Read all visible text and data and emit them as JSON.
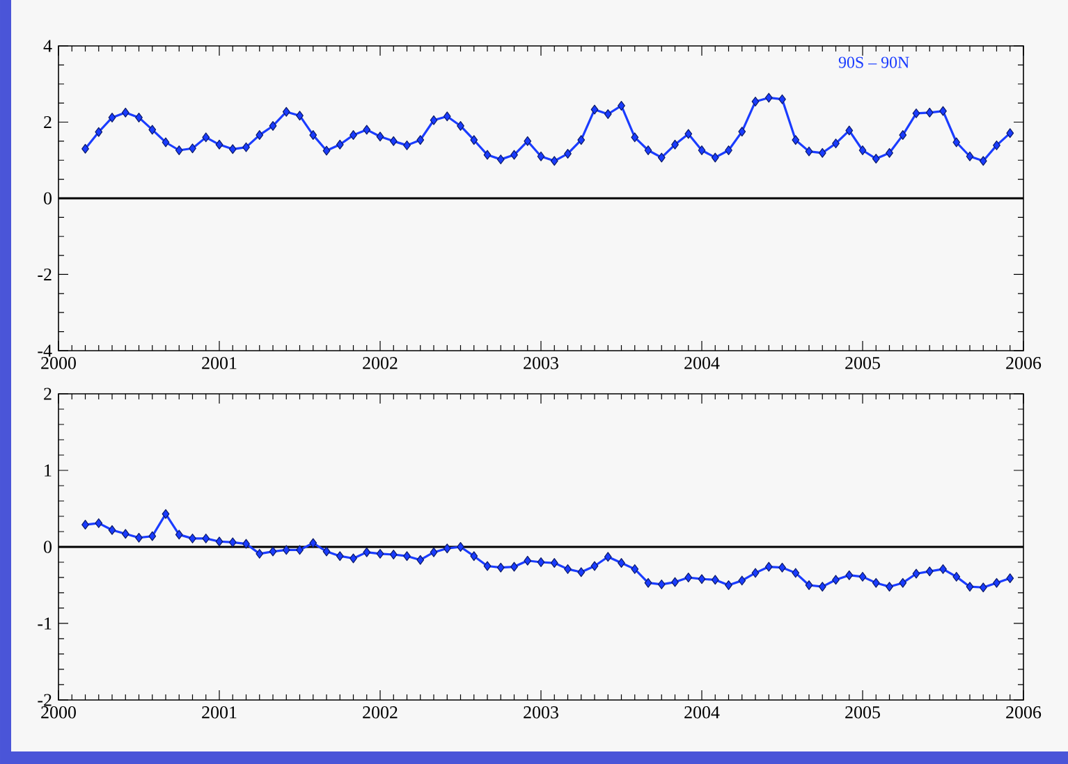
{
  "chart_data": [
    {
      "type": "line",
      "marker": "diamond",
      "color": "#1a3cff",
      "x": [
        "2000-03",
        "2000-04",
        "2000-05",
        "2000-06",
        "2000-07",
        "2000-08",
        "2000-09",
        "2000-10",
        "2000-11",
        "2000-12",
        "2001-01",
        "2001-02",
        "2001-03",
        "2001-04",
        "2001-05",
        "2001-06",
        "2001-07",
        "2001-08",
        "2001-09",
        "2001-10",
        "2001-11",
        "2001-12",
        "2002-01",
        "2002-02",
        "2002-03",
        "2002-04",
        "2002-05",
        "2002-06",
        "2002-07",
        "2002-08",
        "2002-09",
        "2002-10",
        "2002-11",
        "2002-12",
        "2003-01",
        "2003-02",
        "2003-03",
        "2003-04",
        "2003-05",
        "2003-06",
        "2003-07",
        "2003-08",
        "2003-09",
        "2003-10",
        "2003-11",
        "2003-12",
        "2004-01",
        "2004-02",
        "2004-03",
        "2004-04",
        "2004-05",
        "2004-06",
        "2004-07",
        "2004-08",
        "2004-09",
        "2004-10",
        "2004-11",
        "2004-12",
        "2005-01",
        "2005-02",
        "2005-03",
        "2005-04",
        "2005-05",
        "2005-06",
        "2005-07",
        "2005-08",
        "2005-09",
        "2005-10",
        "2005-11",
        "2005-12"
      ],
      "values": [
        1.3,
        1.74,
        2.12,
        2.25,
        2.12,
        1.8,
        1.47,
        1.26,
        1.31,
        1.6,
        1.41,
        1.29,
        1.34,
        1.66,
        1.9,
        2.27,
        2.17,
        1.66,
        1.25,
        1.41,
        1.66,
        1.8,
        1.62,
        1.5,
        1.39,
        1.53,
        2.05,
        2.15,
        1.9,
        1.53,
        1.14,
        1.02,
        1.14,
        1.5,
        1.1,
        0.98,
        1.17,
        1.53,
        2.33,
        2.21,
        2.43,
        1.6,
        1.26,
        1.07,
        1.41,
        1.69,
        1.26,
        1.07,
        1.26,
        1.75,
        2.54,
        2.64,
        2.6,
        1.53,
        1.23,
        1.19,
        1.44,
        1.78,
        1.26,
        1.04,
        1.19,
        1.66,
        2.23,
        2.25,
        2.29,
        1.47,
        1.1,
        0.98,
        1.39,
        1.71
      ],
      "xlim": [
        "2000",
        "2006"
      ],
      "xticks": [
        "2000",
        "2001",
        "2002",
        "2003",
        "2004",
        "2005",
        "2006"
      ],
      "ylim": [
        -4,
        4
      ],
      "yticks": [
        -4,
        -2,
        0,
        2,
        4
      ],
      "ref_lines": [
        {
          "axis": "y",
          "value": 0,
          "color": "#000000"
        }
      ],
      "annotations": [
        "90S – 90N"
      ]
    },
    {
      "type": "line",
      "marker": "diamond",
      "color": "#1a3cff",
      "x": [
        "2000-03",
        "2000-04",
        "2000-05",
        "2000-06",
        "2000-07",
        "2000-08",
        "2000-09",
        "2000-10",
        "2000-11",
        "2000-12",
        "2001-01",
        "2001-02",
        "2001-03",
        "2001-04",
        "2001-05",
        "2001-06",
        "2001-07",
        "2001-08",
        "2001-09",
        "2001-10",
        "2001-11",
        "2001-12",
        "2002-01",
        "2002-02",
        "2002-03",
        "2002-04",
        "2002-05",
        "2002-06",
        "2002-07",
        "2002-08",
        "2002-09",
        "2002-10",
        "2002-11",
        "2002-12",
        "2003-01",
        "2003-02",
        "2003-03",
        "2003-04",
        "2003-05",
        "2003-06",
        "2003-07",
        "2003-08",
        "2003-09",
        "2003-10",
        "2003-11",
        "2003-12",
        "2004-01",
        "2004-02",
        "2004-03",
        "2004-04",
        "2004-05",
        "2004-06",
        "2004-07",
        "2004-08",
        "2004-09",
        "2004-10",
        "2004-11",
        "2004-12",
        "2005-01",
        "2005-02",
        "2005-03",
        "2005-04",
        "2005-05",
        "2005-06",
        "2005-07",
        "2005-08",
        "2005-09",
        "2005-10",
        "2005-11",
        "2005-12"
      ],
      "values": [
        0.29,
        0.31,
        0.22,
        0.17,
        0.12,
        0.14,
        0.43,
        0.16,
        0.11,
        0.11,
        0.07,
        0.06,
        0.04,
        -0.09,
        -0.06,
        -0.04,
        -0.04,
        0.05,
        -0.06,
        -0.12,
        -0.15,
        -0.07,
        -0.09,
        -0.1,
        -0.12,
        -0.17,
        -0.07,
        -0.02,
        0.0,
        -0.12,
        -0.25,
        -0.27,
        -0.26,
        -0.18,
        -0.2,
        -0.21,
        -0.29,
        -0.33,
        -0.25,
        -0.13,
        -0.21,
        -0.29,
        -0.47,
        -0.49,
        -0.46,
        -0.4,
        -0.42,
        -0.43,
        -0.5,
        -0.44,
        -0.34,
        -0.26,
        -0.27,
        -0.34,
        -0.5,
        -0.52,
        -0.43,
        -0.37,
        -0.39,
        -0.47,
        -0.52,
        -0.47,
        -0.35,
        -0.32,
        -0.29,
        -0.39,
        -0.52,
        -0.53,
        -0.47,
        -0.41
      ],
      "xlim": [
        "2000",
        "2006"
      ],
      "xticks": [
        "2000",
        "2001",
        "2002",
        "2003",
        "2004",
        "2005",
        "2006"
      ],
      "ylim": [
        -2,
        2
      ],
      "yticks": [
        -2,
        -1,
        0,
        1,
        2
      ],
      "ref_lines": [
        {
          "axis": "y",
          "value": 0,
          "color": "#000000"
        }
      ]
    }
  ]
}
